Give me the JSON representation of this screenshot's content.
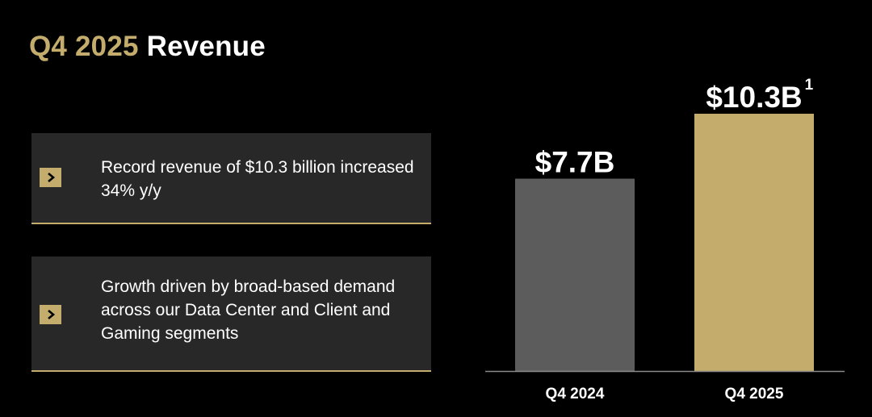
{
  "title": {
    "period": "Q4 2025",
    "label": "Revenue"
  },
  "highlights": [
    {
      "text": "Record revenue of $10.3 billion increased 34% y/y",
      "icon": "chevron-right-icon"
    },
    {
      "text": "Growth driven by broad-based demand across our Data Center and Client and Gaming segments",
      "icon": "chevron-right-icon"
    }
  ],
  "colors": {
    "background": "#000000",
    "accent_gold": "#c4ad6c",
    "bar_prior": "#5c5c5c",
    "card_bg": "#282828",
    "text": "#ffffff"
  },
  "chart_data": {
    "type": "bar",
    "categories": [
      "Q4 2024",
      "Q4 2025"
    ],
    "values": [
      7.7,
      10.3
    ],
    "data_labels": [
      "$7.7B",
      "$10.3B"
    ],
    "data_label_footnotes": [
      "",
      "1"
    ],
    "bar_colors": [
      "#5c5c5c",
      "#c4ad6c"
    ],
    "unit": "$B",
    "ylim": [
      0,
      10.3
    ],
    "title": "",
    "xlabel": "",
    "ylabel": "",
    "grid": false
  }
}
